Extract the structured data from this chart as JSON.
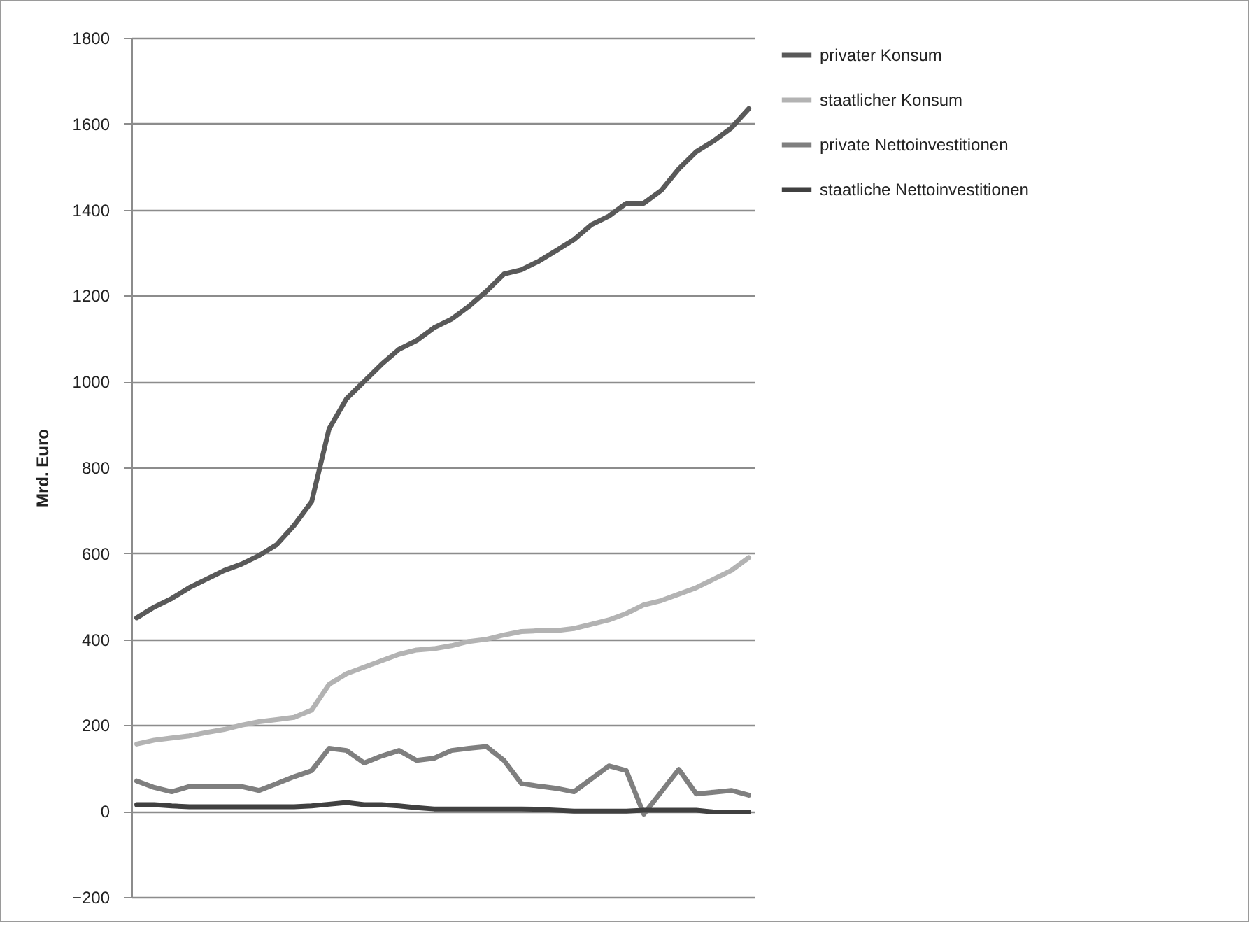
{
  "chart_data": {
    "type": "line",
    "ylabel": "Mrd. Euro",
    "categories": [
      null,
      null,
      null,
      null,
      null,
      null,
      null,
      null,
      null,
      null,
      null,
      null,
      null,
      null,
      null,
      null,
      null,
      null,
      null,
      null,
      null,
      null,
      null,
      null,
      null,
      null,
      null,
      null,
      null,
      null,
      null,
      null,
      null,
      null,
      null,
      null
    ],
    "series": [
      {
        "name": "privater Konsum",
        "color": "#595959",
        "values": [
          450,
          475,
          495,
          520,
          540,
          560,
          575,
          595,
          620,
          665,
          720,
          890,
          960,
          1000,
          1040,
          1075,
          1095,
          1125,
          1145,
          1175,
          1210,
          1250,
          1260,
          1280,
          1305,
          1330,
          1365,
          1385,
          1415,
          1415,
          1445,
          1495,
          1535,
          1560,
          1590,
          1635
        ]
      },
      {
        "name": "staatlicher Konsum",
        "color": "#b3b3b3",
        "values": [
          156,
          165,
          170,
          175,
          183,
          190,
          200,
          208,
          213,
          218,
          235,
          295,
          320,
          335,
          350,
          365,
          375,
          378,
          385,
          395,
          400,
          410,
          418,
          420,
          420,
          425,
          435,
          445,
          460,
          480,
          490,
          505,
          520,
          540,
          560,
          590
        ]
      },
      {
        "name": "private Nettoinvestitionen",
        "color": "#7f7f7f",
        "values": [
          70,
          55,
          45,
          57,
          57,
          57,
          57,
          48,
          64,
          80,
          94,
          146,
          141,
          112,
          128,
          141,
          118,
          123,
          141,
          146,
          150,
          118,
          64,
          58,
          53,
          45,
          75,
          105,
          94,
          -7,
          45,
          97,
          40,
          44,
          48,
          37
        ]
      },
      {
        "name": "staatliche Nettoinvestitionen",
        "color": "#404040",
        "values": [
          15,
          15,
          12,
          10,
          10,
          10,
          10,
          10,
          10,
          10,
          12,
          16,
          20,
          15,
          15,
          12,
          8,
          5,
          5,
          5,
          5,
          5,
          5,
          4,
          2,
          0,
          0,
          0,
          0,
          2,
          2,
          2,
          2,
          -2,
          -2,
          -2
        ]
      }
    ],
    "ylim": [
      -200,
      1800
    ],
    "yticks": [
      -200,
      0,
      200,
      400,
      600,
      800,
      1000,
      1200,
      1400,
      1600,
      1800
    ],
    "grid": "y",
    "legend": "right",
    "tick_labels": "y",
    "line_style": "solid",
    "marker": "none"
  }
}
